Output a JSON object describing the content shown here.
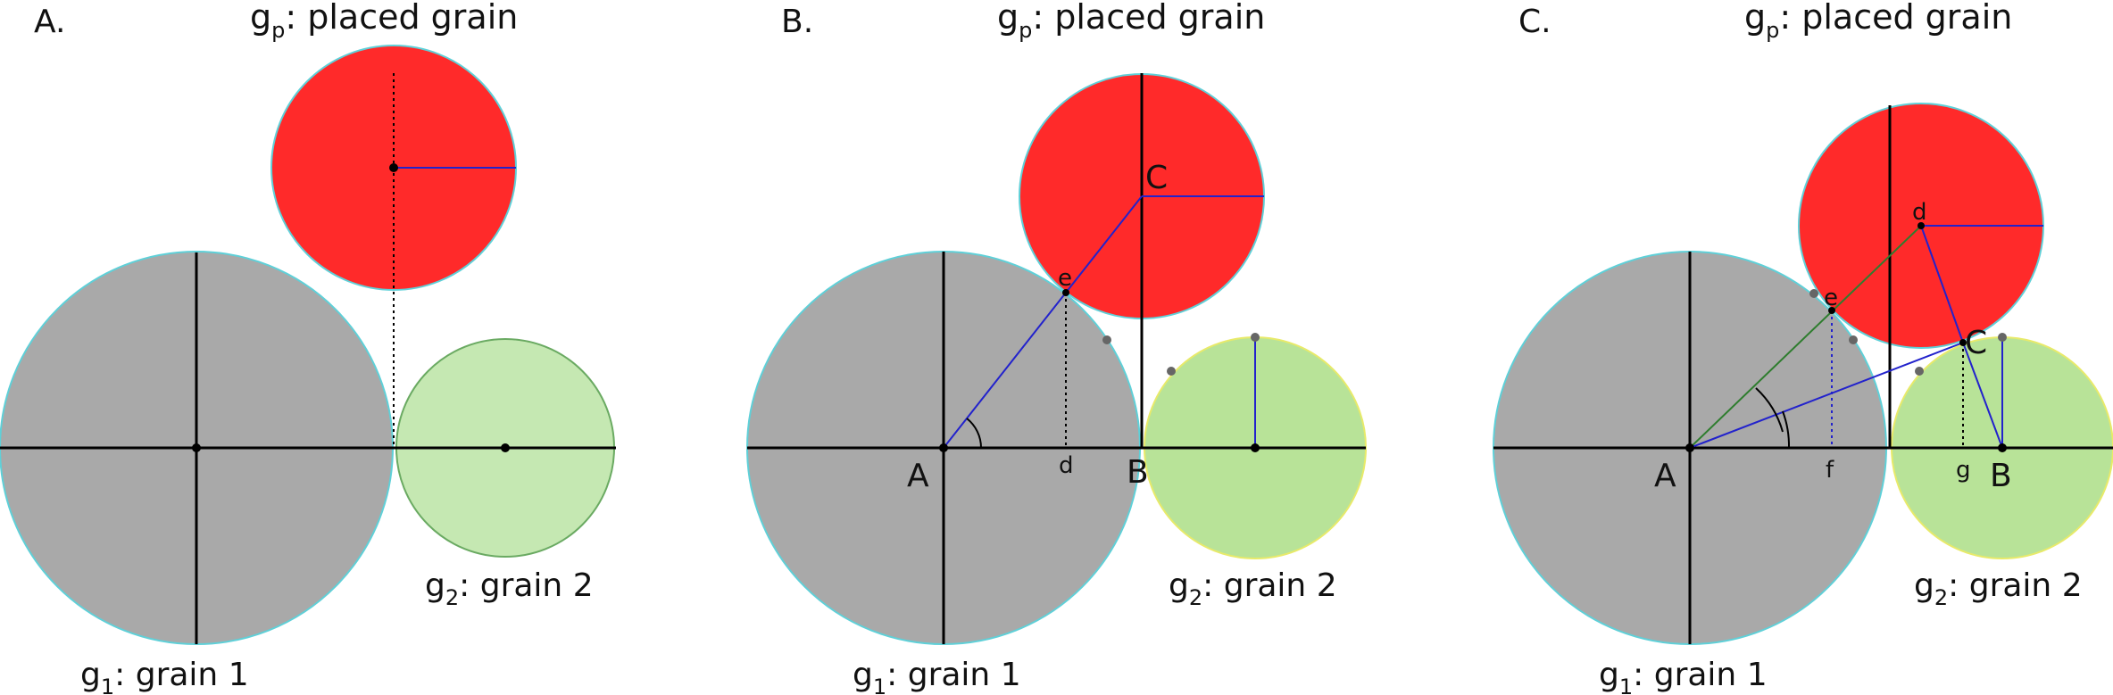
{
  "figure": {
    "panels": [
      {
        "id": "A",
        "label": "A.",
        "title": {
          "main": "g",
          "sub": "p",
          "rest": ": placed grain"
        },
        "grain1_label": {
          "main": "g",
          "sub": "1",
          "rest": ": grain 1"
        },
        "grain2_label": {
          "main": "g",
          "sub": "2",
          "rest": ": grain 2"
        }
      },
      {
        "id": "B",
        "label": "B.",
        "title": {
          "main": "g",
          "sub": "p",
          "rest": ": placed grain"
        },
        "grain1_label": {
          "main": "g",
          "sub": "1",
          "rest": ": grain 1"
        },
        "grain2_label": {
          "main": "g",
          "sub": "2",
          "rest": ": grain 2"
        },
        "points": {
          "A": "A",
          "B": "B",
          "C": "C",
          "d": "d",
          "e": "e"
        }
      },
      {
        "id": "C",
        "label": "C.",
        "title": {
          "main": "g",
          "sub": "p",
          "rest": ": placed grain"
        },
        "grain1_label": {
          "main": "g",
          "sub": "1",
          "rest": ": grain 1"
        },
        "grain2_label": {
          "main": "g",
          "sub": "2",
          "rest": ": grain 2"
        },
        "points": {
          "A": "A",
          "B": "B",
          "C": "C",
          "d": "d",
          "e": "e",
          "f": "f",
          "g": "g"
        }
      }
    ],
    "colors": {
      "grain1_fill": "#a9a9a9",
      "grain_outline": "#5fd0d8",
      "placed_fill": "#ff2a2a",
      "grain2_fill_a": "#c5e8b2",
      "grain2_outline_a": "#6aaa62",
      "grain2_fill": "#b8e398",
      "grain2_outline": "#e8ea6a",
      "blue_line": "#2222cc",
      "green_line": "#2e7d2e"
    }
  }
}
